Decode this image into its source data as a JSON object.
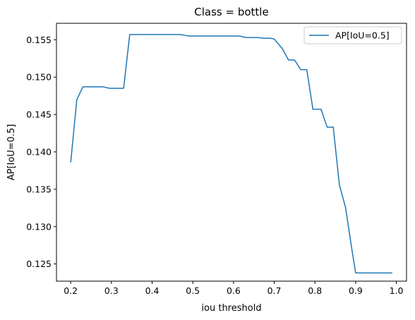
{
  "chart_data": {
    "type": "line",
    "title": "Class = bottle",
    "xlabel": "iou threshold",
    "ylabel": "AP[IoU=0.5]",
    "xlim": [
      0.165,
      1.025
    ],
    "ylim": [
      0.1227,
      0.1572
    ],
    "xticks": [
      "0.2",
      "0.3",
      "0.4",
      "0.5",
      "0.6",
      "0.7",
      "0.8",
      "0.9",
      "1.0"
    ],
    "yticks": [
      "0.125",
      "0.130",
      "0.135",
      "0.140",
      "0.145",
      "0.150",
      "0.155"
    ],
    "legend_position": "top-right",
    "series": [
      {
        "name": "AP[IoU=0.5]",
        "color": "#1f77b4",
        "x": [
          0.2,
          0.215,
          0.23,
          0.245,
          0.26,
          0.28,
          0.295,
          0.31,
          0.33,
          0.345,
          0.36,
          0.375,
          0.39,
          0.41,
          0.425,
          0.44,
          0.455,
          0.47,
          0.48,
          0.49,
          0.505,
          0.52,
          0.535,
          0.55,
          0.57,
          0.585,
          0.6,
          0.615,
          0.63,
          0.645,
          0.66,
          0.675,
          0.69,
          0.7,
          0.72,
          0.735,
          0.75,
          0.765,
          0.78,
          0.795,
          0.815,
          0.83,
          0.845,
          0.86,
          0.875,
          0.89,
          0.9,
          0.91,
          0.93,
          0.95,
          0.97,
          0.99
        ],
        "y": [
          0.1386,
          0.147,
          0.1487,
          0.1487,
          0.1487,
          0.1487,
          0.1485,
          0.1485,
          0.1485,
          0.1557,
          0.1557,
          0.1557,
          0.1557,
          0.1557,
          0.1557,
          0.1557,
          0.1557,
          0.1557,
          0.1556,
          0.1555,
          0.1555,
          0.1555,
          0.1555,
          0.1555,
          0.1555,
          0.1555,
          0.1555,
          0.1555,
          0.1553,
          0.1553,
          0.1553,
          0.1552,
          0.1552,
          0.1551,
          0.1538,
          0.1523,
          0.1523,
          0.151,
          0.151,
          0.1457,
          0.1457,
          0.1433,
          0.1433,
          0.1356,
          0.1326,
          0.1272,
          0.1238,
          0.1238,
          0.1238,
          0.1238,
          0.1238,
          0.1238
        ]
      }
    ]
  }
}
